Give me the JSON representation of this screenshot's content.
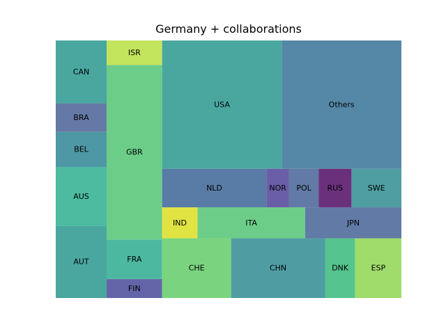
{
  "chart_data": {
    "type": "treemap",
    "title": "Germany + collaborations",
    "xlabel": "",
    "ylabel": "",
    "grid": false,
    "axes_visible": false,
    "legend": "none",
    "items": [
      {
        "label": "AUT",
        "value": 8.4,
        "color": "#4aa7a0"
      },
      {
        "label": "AUS",
        "value": 6.8,
        "color": "#4cbb9f"
      },
      {
        "label": "BEL",
        "value": 4.1,
        "color": "#4e97a4"
      },
      {
        "label": "BRA",
        "value": 3.3,
        "color": "#6579a6"
      },
      {
        "label": "CAN",
        "value": 7.3,
        "color": "#4aa7a0"
      },
      {
        "label": "FIN",
        "value": 2.4,
        "color": "#6465a8"
      },
      {
        "label": "FRA",
        "value": 5.0,
        "color": "#4cb8a0"
      },
      {
        "label": "GBR",
        "value": 22.1,
        "color": "#6ccd89"
      },
      {
        "label": "ISR",
        "value": 3.1,
        "color": "#c3e45d"
      },
      {
        "label": "CHE",
        "value": 9.4,
        "color": "#7ad47f"
      },
      {
        "label": "CHN",
        "value": 12.8,
        "color": "#4f9da3"
      },
      {
        "label": "DNK",
        "value": 4.1,
        "color": "#56c48e"
      },
      {
        "label": "ESP",
        "value": 6.3,
        "color": "#a0dc6b"
      },
      {
        "label": "IND",
        "value": 2.5,
        "color": "#e1e343"
      },
      {
        "label": "ITA",
        "value": 7.6,
        "color": "#6ccd89"
      },
      {
        "label": "JPN",
        "value": 6.8,
        "color": "#617aa6"
      },
      {
        "label": "NLD",
        "value": 9.2,
        "color": "#587ca6"
      },
      {
        "label": "NOR",
        "value": 2.0,
        "color": "#6a5ea8"
      },
      {
        "label": "POL",
        "value": 2.6,
        "color": "#617aa6"
      },
      {
        "label": "RUS",
        "value": 2.9,
        "color": "#6a307c"
      },
      {
        "label": "SWE",
        "value": 4.4,
        "color": "#4e9ea2"
      },
      {
        "label": "USA",
        "value": 35.0,
        "color": "#4aa7a0"
      },
      {
        "label": "Others",
        "value": 35.0,
        "color": "#5588a6"
      }
    ]
  }
}
